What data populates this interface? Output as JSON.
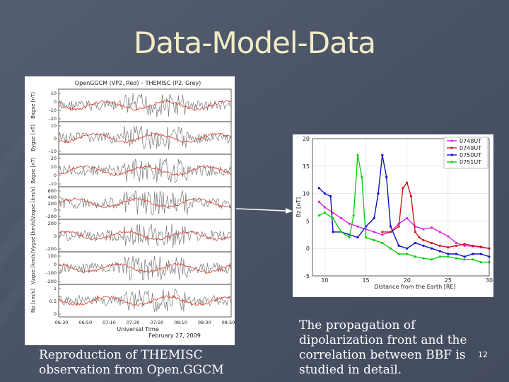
{
  "slide": {
    "title": "Data-Model-Data",
    "page_number": "12",
    "colors": {
      "background": "#4a5266",
      "title": "#f2ecc4"
    }
  },
  "left_figure": {
    "header": "OpenGGCM (VP2, Red) – THEMISC (P2, Grey)",
    "panels": [
      {
        "label": "Bxgse [nT]",
        "ticks": [
          "10",
          "0",
          "–10",
          "–20"
        ]
      },
      {
        "label": "Bygse [nT]",
        "ticks": [
          "10",
          "0",
          "–10"
        ]
      },
      {
        "label": "Bzgse [nT]",
        "ticks": [
          "20",
          "10",
          "0",
          "–10"
        ]
      },
      {
        "label": "Vxgse [km/s]",
        "ticks": [
          "600",
          "400",
          "200",
          "0",
          "–200"
        ]
      },
      {
        "label": "Vygse [km/s]",
        "ticks": [
          "200",
          "0",
          "–200"
        ]
      },
      {
        "label": "Vzgse [km/s]",
        "ticks": [
          "100",
          "0",
          "–100",
          "–200"
        ]
      },
      {
        "label": "Np [cm/s]",
        "ticks": [
          "1",
          "0.5",
          "0"
        ]
      }
    ],
    "x_ticks": [
      "06:30",
      "06:50",
      "07:10",
      "07:30",
      "07:50",
      "08:10",
      "08:30",
      "08:50"
    ],
    "x_label": "Universal Time",
    "date": "February 27, 2009",
    "series_colors": {
      "model": "#d63a2a",
      "data": "#777777"
    }
  },
  "chart_data": {
    "type": "line",
    "xlabel": "Distance from the Earth [RE]",
    "ylabel": "Bz [nT]",
    "xlim": [
      8.5,
      30
    ],
    "ylim": [
      -5,
      20
    ],
    "x_ticks": [
      10,
      15,
      20,
      25,
      30
    ],
    "y_ticks": [
      -5,
      0,
      5,
      10,
      15,
      20
    ],
    "legend_position": "top-right",
    "series": [
      {
        "name": "0748UT",
        "color": "#e020e0",
        "x": [
          9.3,
          10,
          11,
          12,
          13,
          14,
          15,
          16,
          17,
          18,
          19,
          20,
          21,
          22,
          23,
          24,
          25,
          26,
          27,
          28,
          29,
          30
        ],
        "y": [
          8.5,
          7.5,
          6.5,
          5.5,
          4.5,
          4,
          3.5,
          3,
          2.5,
          3,
          4.5,
          5.5,
          4,
          3.5,
          3.8,
          3,
          2.2,
          1,
          0.5,
          0.4,
          0.2,
          0
        ]
      },
      {
        "name": "0749UT",
        "color": "#d01818",
        "x": [
          17,
          18,
          19,
          19.5,
          20,
          20.5,
          21,
          21.5,
          22,
          23,
          24,
          25,
          26,
          27,
          28,
          29,
          30
        ],
        "y": [
          3,
          3,
          4,
          11,
          12,
          9.5,
          3,
          2,
          1.5,
          1,
          0.5,
          0.2,
          0.5,
          0.8,
          0.5,
          0.3,
          0
        ]
      },
      {
        "name": "0750UT",
        "color": "#1010c8",
        "x": [
          9.3,
          10,
          10.7,
          11,
          12,
          13,
          14,
          15,
          16,
          16.5,
          17,
          17.5,
          18,
          19,
          20,
          21,
          22,
          23,
          24,
          25,
          26,
          27,
          28,
          29,
          30
        ],
        "y": [
          11,
          10,
          9.5,
          3,
          3,
          2.5,
          2,
          4,
          5.5,
          10,
          17,
          13,
          4,
          0.5,
          0,
          1,
          0.5,
          0,
          -0.5,
          -1,
          -1,
          -1.5,
          -1,
          -1,
          -1.5
        ]
      },
      {
        "name": "0751UT",
        "color": "#10d010",
        "x": [
          9.3,
          10,
          11,
          12,
          13,
          13.5,
          14,
          14.5,
          15,
          16,
          17,
          18,
          19,
          20,
          21,
          22,
          23,
          24,
          25,
          26,
          27,
          28,
          29,
          30
        ],
        "y": [
          6,
          6.5,
          5.5,
          3,
          2,
          6,
          17,
          13,
          2,
          1.5,
          1,
          0,
          -1,
          -1,
          -1.5,
          -1.8,
          -2,
          -1.5,
          -1.5,
          -1.8,
          -2,
          -2,
          -2.5,
          -2.5
        ]
      }
    ]
  },
  "captions": {
    "left": "Reproduction of THEMISC observation from Open.GGCM",
    "right": "The propagation of dipolarization front and the correlation between BBF is studied in detail."
  }
}
